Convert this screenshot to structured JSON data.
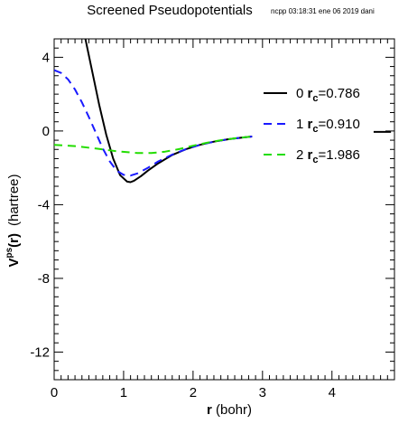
{
  "header": {
    "title": "Screened Pseudopotentials",
    "stamp": "ncpp 03:18:31 ene 06 2019 dani"
  },
  "chart_data": {
    "type": "line",
    "title": "Screened Pseudopotentials",
    "xlabel": {
      "main": "r",
      "rest": " (bohr)"
    },
    "ylabel": {
      "main": "V",
      "sup": "ps",
      "arg": "(r)",
      "unit": "(hartree)"
    },
    "xlim": [
      0,
      4.9
    ],
    "ylim": [
      -13.5,
      5.0
    ],
    "xticks": [
      0,
      1,
      2,
      3,
      4
    ],
    "xtick_labels": [
      "0",
      "1",
      "2",
      "3",
      "4"
    ],
    "yticks": [
      4,
      0,
      -4,
      -8,
      -12
    ],
    "ytick_labels": [
      "4",
      "0",
      "-4",
      "-8",
      "-12"
    ],
    "grid": false,
    "legend_position": "top-right",
    "series": [
      {
        "l": "0",
        "rc_label": "r",
        "rc_sub": "c",
        "rc_value": "=0.786",
        "color": "#000000",
        "dash": "none",
        "x": [
          0.45,
          0.55,
          0.65,
          0.75,
          0.85,
          0.95,
          1.05,
          1.1,
          1.15,
          1.25,
          1.35,
          1.5,
          1.7,
          1.9,
          2.1,
          2.3,
          2.5,
          2.7,
          2.85
        ],
        "y": [
          5.0,
          3.2,
          1.4,
          -0.2,
          -1.5,
          -2.4,
          -2.75,
          -2.78,
          -2.7,
          -2.45,
          -2.15,
          -1.75,
          -1.3,
          -0.98,
          -0.75,
          -0.58,
          -0.45,
          -0.36,
          -0.3
        ]
      },
      {
        "l": "1",
        "rc_label": "r",
        "rc_sub": "c",
        "rc_value": "=0.910",
        "color": "#1a1aff",
        "dash": "9,6",
        "x": [
          0,
          0.1,
          0.2,
          0.3,
          0.4,
          0.5,
          0.6,
          0.7,
          0.8,
          0.9,
          1.0,
          1.1,
          1.2,
          1.35,
          1.5,
          1.7,
          1.9,
          2.1,
          2.3,
          2.5,
          2.7,
          2.85
        ],
        "y": [
          3.3,
          3.15,
          2.8,
          2.25,
          1.55,
          0.75,
          -0.1,
          -0.95,
          -1.65,
          -2.15,
          -2.38,
          -2.42,
          -2.3,
          -2.0,
          -1.65,
          -1.28,
          -0.98,
          -0.75,
          -0.58,
          -0.45,
          -0.36,
          -0.3
        ]
      },
      {
        "l": "2",
        "rc_label": "r",
        "rc_sub": "c",
        "rc_value": "=1.986",
        "color": "#22dd00",
        "dash": "9,6",
        "x": [
          0,
          0.3,
          0.6,
          0.9,
          1.2,
          1.4,
          1.6,
          1.8,
          2.0,
          2.2,
          2.4,
          2.6,
          2.8,
          2.85
        ],
        "y": [
          -0.75,
          -0.82,
          -0.95,
          -1.1,
          -1.2,
          -1.2,
          -1.12,
          -0.98,
          -0.8,
          -0.64,
          -0.5,
          -0.4,
          -0.32,
          -0.3
        ]
      }
    ],
    "tail_segment": {
      "x": [
        4.6,
        4.85
      ],
      "y": [
        -0.05,
        -0.05
      ]
    }
  }
}
